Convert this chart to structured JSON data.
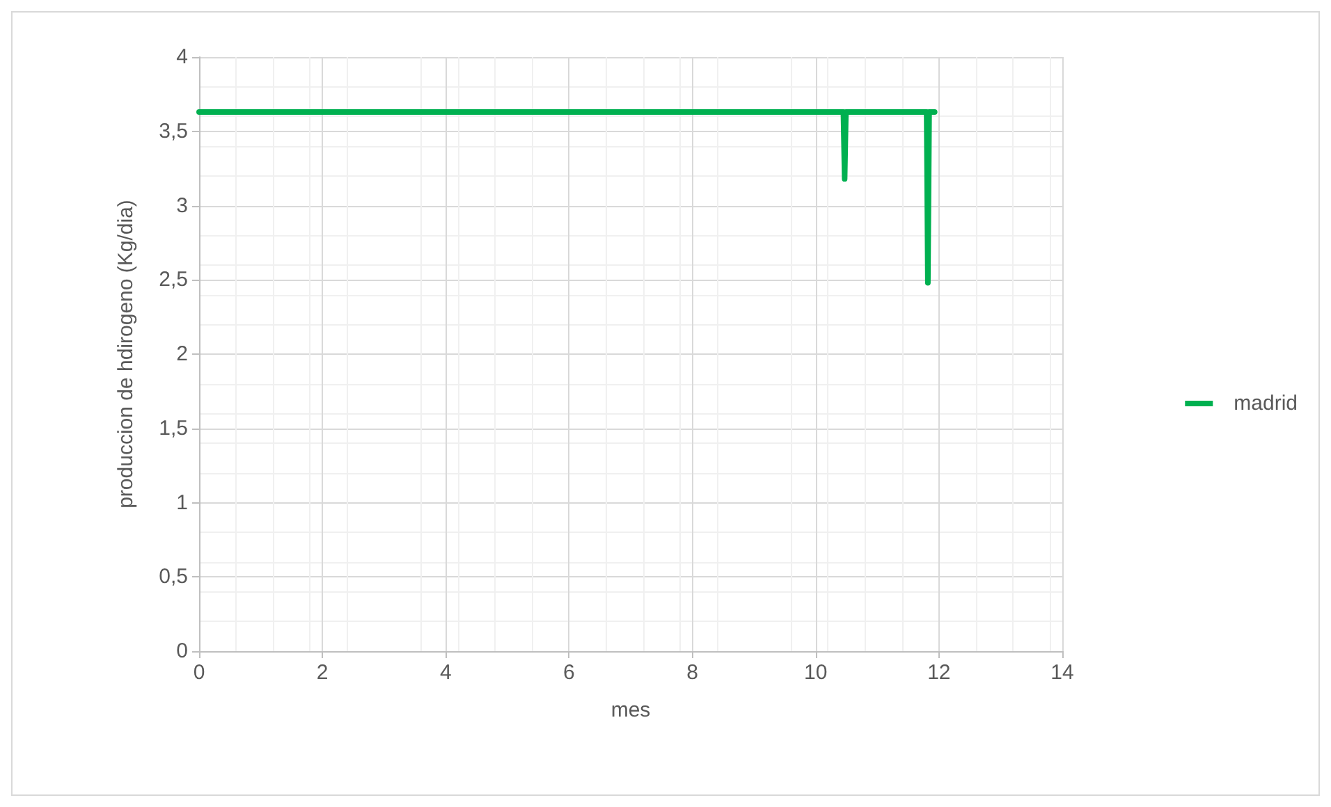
{
  "chart_data": {
    "type": "line",
    "xlabel": "mes",
    "ylabel": "produccion de hdirogeno (Kg/dia)",
    "series": [
      {
        "name": "madrid",
        "color": "#00b050",
        "x": [
          0,
          10.45,
          10.47,
          10.49,
          11.8,
          11.82,
          11.84,
          11.93
        ],
        "values": [
          3.63,
          3.63,
          3.18,
          3.63,
          3.63,
          2.48,
          3.63,
          3.63
        ]
      }
    ],
    "xlim": [
      0,
      14
    ],
    "xticks": [
      0,
      2,
      4,
      6,
      8,
      10,
      12,
      14
    ],
    "ylim": [
      0,
      4
    ],
    "yticks": [
      0,
      {
        "value": 0.5,
        "label": "0,5"
      },
      1,
      {
        "value": 1.5,
        "label": "1,5"
      },
      2,
      {
        "value": 2.5,
        "label": "2,5"
      },
      3,
      {
        "value": 3.5,
        "label": "3,5"
      },
      4
    ],
    "grid": true,
    "legend": "right",
    "marker": "none",
    "line_style": "solid"
  }
}
